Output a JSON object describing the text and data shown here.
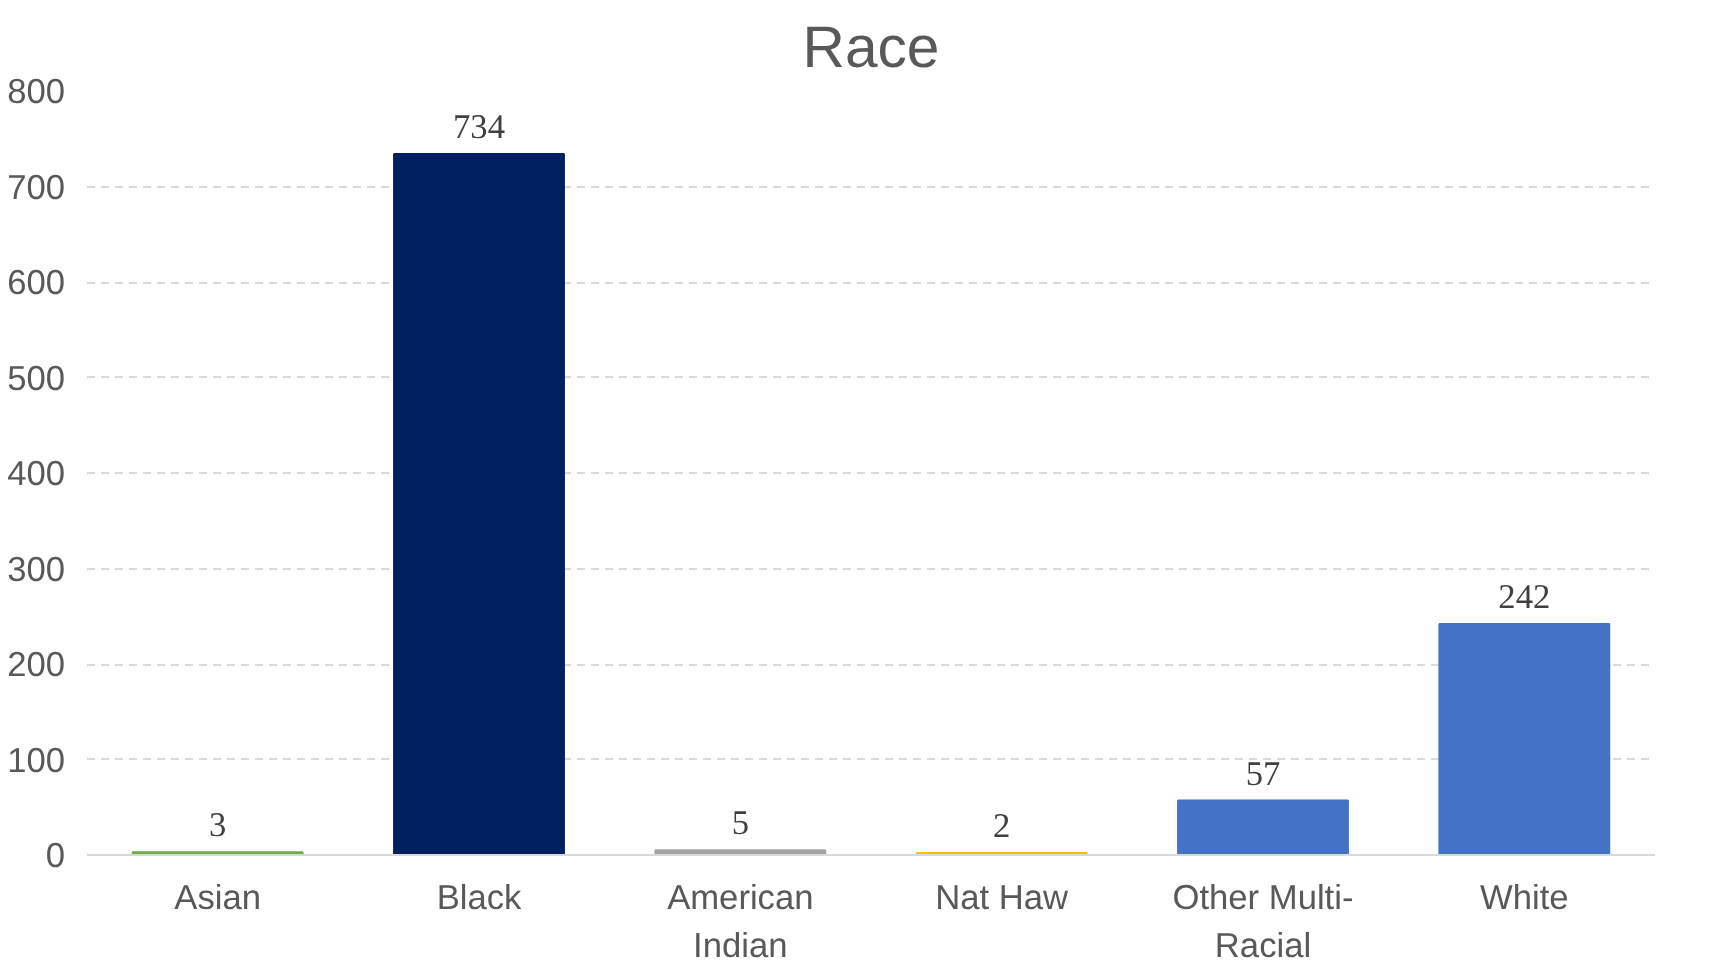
{
  "chart_data": {
    "type": "bar",
    "title": "Race",
    "categories": [
      "Asian",
      "Black",
      "American Indian",
      "Nat Haw",
      "Other Multi-Racial",
      "White"
    ],
    "values": [
      3,
      734,
      5,
      2,
      57,
      242
    ],
    "colors": [
      "#70ad47",
      "#002060",
      "#a5a5a5",
      "#ffc000",
      "#4472c4",
      "#4472c4"
    ],
    "ylim": [
      0,
      800
    ],
    "yticks": [
      0,
      100,
      200,
      300,
      400,
      500,
      600,
      700,
      800
    ],
    "grid": "y",
    "data_labels": true
  }
}
